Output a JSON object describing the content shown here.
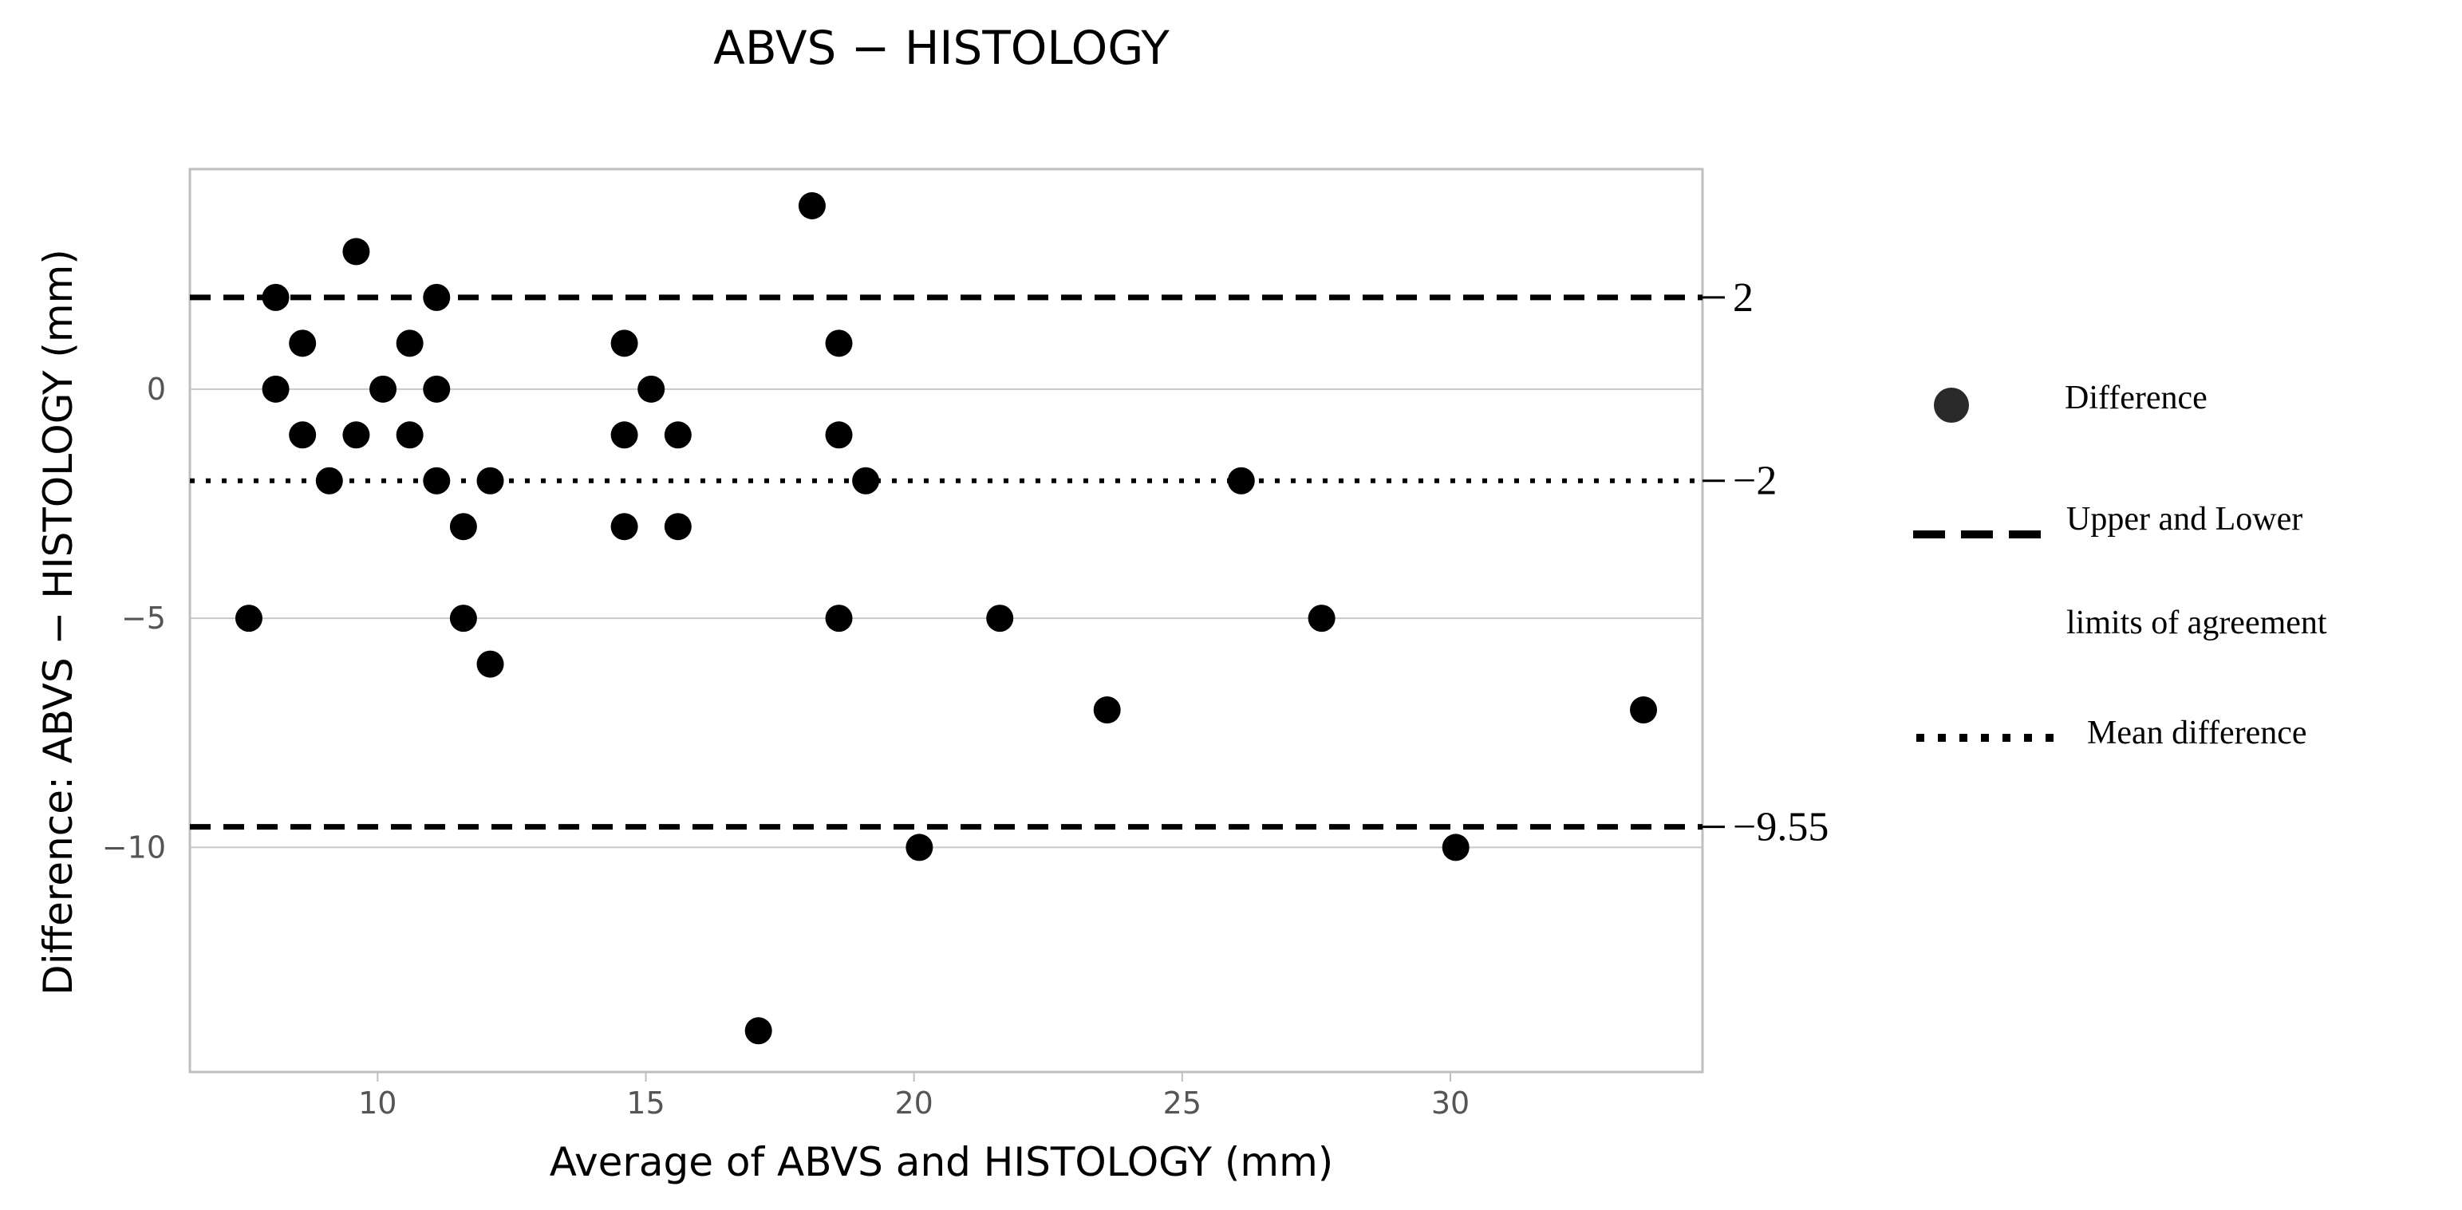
{
  "chart_data": {
    "type": "scatter",
    "title": "ABVS − HISTOLOGY",
    "xlabel": "Average of ABVS and HISTOLOGY (mm)",
    "ylabel": "Difference: ABVS − HISTOLOGY (mm)",
    "xlim": [
      6.5,
      34.7
    ],
    "ylim": [
      -14.9,
      4.8
    ],
    "x_ticks": [
      10,
      15,
      20,
      25,
      30
    ],
    "y_ticks": [
      0,
      -5,
      -10
    ],
    "x_tick_labels": [
      "10",
      "15",
      "20",
      "25",
      "30"
    ],
    "y_tick_labels": [
      "0",
      "−5",
      "−10"
    ],
    "grid": "horizontal",
    "point_color": "#000000",
    "line_color": "#000000",
    "series": [
      {
        "name": "Difference",
        "points": [
          {
            "x": 7.6,
            "y": -5
          },
          {
            "x": 8.1,
            "y": 2
          },
          {
            "x": 8.1,
            "y": 0
          },
          {
            "x": 8.6,
            "y": 1
          },
          {
            "x": 8.6,
            "y": -1
          },
          {
            "x": 9.1,
            "y": -2
          },
          {
            "x": 9.6,
            "y": 3
          },
          {
            "x": 9.6,
            "y": -1
          },
          {
            "x": 10.1,
            "y": 0
          },
          {
            "x": 10.6,
            "y": 1
          },
          {
            "x": 10.6,
            "y": -1
          },
          {
            "x": 11.1,
            "y": 2
          },
          {
            "x": 11.1,
            "y": 0
          },
          {
            "x": 11.1,
            "y": -2
          },
          {
            "x": 11.6,
            "y": -3
          },
          {
            "x": 11.6,
            "y": -5
          },
          {
            "x": 12.1,
            "y": -2
          },
          {
            "x": 12.1,
            "y": -6
          },
          {
            "x": 14.6,
            "y": 1
          },
          {
            "x": 14.6,
            "y": -1
          },
          {
            "x": 14.6,
            "y": -3
          },
          {
            "x": 15.1,
            "y": 0
          },
          {
            "x": 15.6,
            "y": -1
          },
          {
            "x": 15.6,
            "y": -3
          },
          {
            "x": 17.1,
            "y": -14
          },
          {
            "x": 18.1,
            "y": 4
          },
          {
            "x": 18.6,
            "y": 1
          },
          {
            "x": 18.6,
            "y": -1
          },
          {
            "x": 18.6,
            "y": -5
          },
          {
            "x": 19.1,
            "y": -2
          },
          {
            "x": 20.1,
            "y": -10
          },
          {
            "x": 21.6,
            "y": -5
          },
          {
            "x": 23.6,
            "y": -7
          },
          {
            "x": 26.1,
            "y": -2
          },
          {
            "x": 27.6,
            "y": -5
          },
          {
            "x": 30.1,
            "y": -10
          },
          {
            "x": 33.6,
            "y": -7
          }
        ]
      }
    ],
    "reference_lines": [
      {
        "kind": "upper_loa",
        "y": 2,
        "label": "2",
        "style": "dashed"
      },
      {
        "kind": "mean",
        "y": -2,
        "label": "−2",
        "style": "dotted"
      },
      {
        "kind": "lower_loa",
        "y": -9.55,
        "label": "−9.55",
        "style": "dashed"
      }
    ],
    "legend": {
      "position": "right",
      "items": [
        {
          "key": "points",
          "symbol": "circle",
          "lines": [
            "Difference"
          ]
        },
        {
          "key": "loa",
          "symbol": "dashed-line",
          "lines": [
            "Upper    and    Lower",
            "limits of agreement"
          ]
        },
        {
          "key": "mean",
          "symbol": "dotted-line",
          "lines": [
            "Mean difference"
          ]
        }
      ]
    }
  }
}
